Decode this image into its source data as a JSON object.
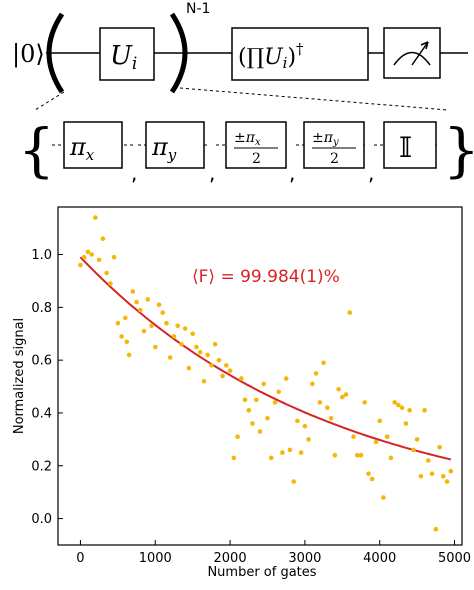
{
  "circuit": {
    "ket": "|0⟩",
    "repeat_label": "N-1",
    "gate_u": "U",
    "gate_u_sub": "i",
    "product_gate_open": "(∏",
    "product_gate_u": "U",
    "product_gate_sub": "i",
    "product_gate_close": ")",
    "product_gate_dagger": "†",
    "gate_set": [
      {
        "main": "π",
        "sub": "x"
      },
      {
        "main": "π",
        "sub": "y"
      },
      {
        "num": "±π",
        "num_sub": "x",
        "den": "2"
      },
      {
        "num": "±π",
        "num_sub": "y",
        "den": "2"
      },
      {
        "main": "𝕀"
      }
    ],
    "separator": ","
  },
  "chart_data": {
    "type": "scatter",
    "xlabel": "Number of gates",
    "ylabel": "Normalized signal",
    "annotation": "⟨F⟩ = 99.984(1)%",
    "xlim": [
      -300,
      5100
    ],
    "ylim": [
      -0.1,
      1.18
    ],
    "xticks": [
      0,
      1000,
      2000,
      3000,
      4000,
      5000
    ],
    "yticks": [
      0.0,
      0.2,
      0.4,
      0.6,
      0.8,
      1.0
    ],
    "point_color": "#f5b50a",
    "fit_color": "#d62424",
    "fit": {
      "type": "exponential",
      "A": 0.99,
      "tau": 3330,
      "x_range": [
        0,
        4950
      ]
    },
    "points": [
      [
        0,
        0.96
      ],
      [
        50,
        0.99
      ],
      [
        100,
        1.01
      ],
      [
        150,
        1.0
      ],
      [
        200,
        1.14
      ],
      [
        250,
        0.98
      ],
      [
        300,
        1.06
      ],
      [
        350,
        0.93
      ],
      [
        400,
        0.89
      ],
      [
        450,
        0.99
      ],
      [
        500,
        0.74
      ],
      [
        550,
        0.69
      ],
      [
        600,
        0.76
      ],
      [
        620,
        0.67
      ],
      [
        650,
        0.62
      ],
      [
        700,
        0.86
      ],
      [
        750,
        0.82
      ],
      [
        800,
        0.79
      ],
      [
        850,
        0.71
      ],
      [
        900,
        0.83
      ],
      [
        950,
        0.73
      ],
      [
        1000,
        0.65
      ],
      [
        1050,
        0.81
      ],
      [
        1100,
        0.78
      ],
      [
        1150,
        0.74
      ],
      [
        1200,
        0.61
      ],
      [
        1250,
        0.69
      ],
      [
        1300,
        0.73
      ],
      [
        1350,
        0.66
      ],
      [
        1400,
        0.72
      ],
      [
        1450,
        0.57
      ],
      [
        1500,
        0.7
      ],
      [
        1550,
        0.65
      ],
      [
        1600,
        0.63
      ],
      [
        1650,
        0.52
      ],
      [
        1700,
        0.62
      ],
      [
        1750,
        0.58
      ],
      [
        1800,
        0.66
      ],
      [
        1850,
        0.6
      ],
      [
        1900,
        0.54
      ],
      [
        1950,
        0.58
      ],
      [
        2000,
        0.56
      ],
      [
        2050,
        0.23
      ],
      [
        2100,
        0.31
      ],
      [
        2150,
        0.53
      ],
      [
        2200,
        0.45
      ],
      [
        2250,
        0.41
      ],
      [
        2300,
        0.36
      ],
      [
        2350,
        0.45
      ],
      [
        2400,
        0.33
      ],
      [
        2450,
        0.51
      ],
      [
        2500,
        0.38
      ],
      [
        2550,
        0.23
      ],
      [
        2600,
        0.44
      ],
      [
        2650,
        0.48
      ],
      [
        2700,
        0.25
      ],
      [
        2750,
        0.53
      ],
      [
        2800,
        0.26
      ],
      [
        2850,
        0.14
      ],
      [
        2900,
        0.37
      ],
      [
        2950,
        0.25
      ],
      [
        3000,
        0.35
      ],
      [
        3050,
        0.3
      ],
      [
        3100,
        0.51
      ],
      [
        3150,
        0.55
      ],
      [
        3200,
        0.44
      ],
      [
        3250,
        0.59
      ],
      [
        3300,
        0.42
      ],
      [
        3350,
        0.38
      ],
      [
        3400,
        0.24
      ],
      [
        3450,
        0.49
      ],
      [
        3500,
        0.46
      ],
      [
        3550,
        0.47
      ],
      [
        3600,
        0.78
      ],
      [
        3650,
        0.31
      ],
      [
        3700,
        0.24
      ],
      [
        3750,
        0.24
      ],
      [
        3800,
        0.44
      ],
      [
        3850,
        0.17
      ],
      [
        3900,
        0.15
      ],
      [
        3950,
        0.29
      ],
      [
        4000,
        0.37
      ],
      [
        4050,
        0.08
      ],
      [
        4100,
        0.31
      ],
      [
        4150,
        0.23
      ],
      [
        4200,
        0.44
      ],
      [
        4250,
        0.43
      ],
      [
        4300,
        0.42
      ],
      [
        4350,
        0.36
      ],
      [
        4400,
        0.41
      ],
      [
        4450,
        0.26
      ],
      [
        4500,
        0.3
      ],
      [
        4550,
        0.16
      ],
      [
        4600,
        0.41
      ],
      [
        4650,
        0.22
      ],
      [
        4700,
        0.17
      ],
      [
        4750,
        -0.04
      ],
      [
        4800,
        0.27
      ],
      [
        4850,
        0.16
      ],
      [
        4900,
        0.14
      ],
      [
        4950,
        0.18
      ]
    ]
  }
}
